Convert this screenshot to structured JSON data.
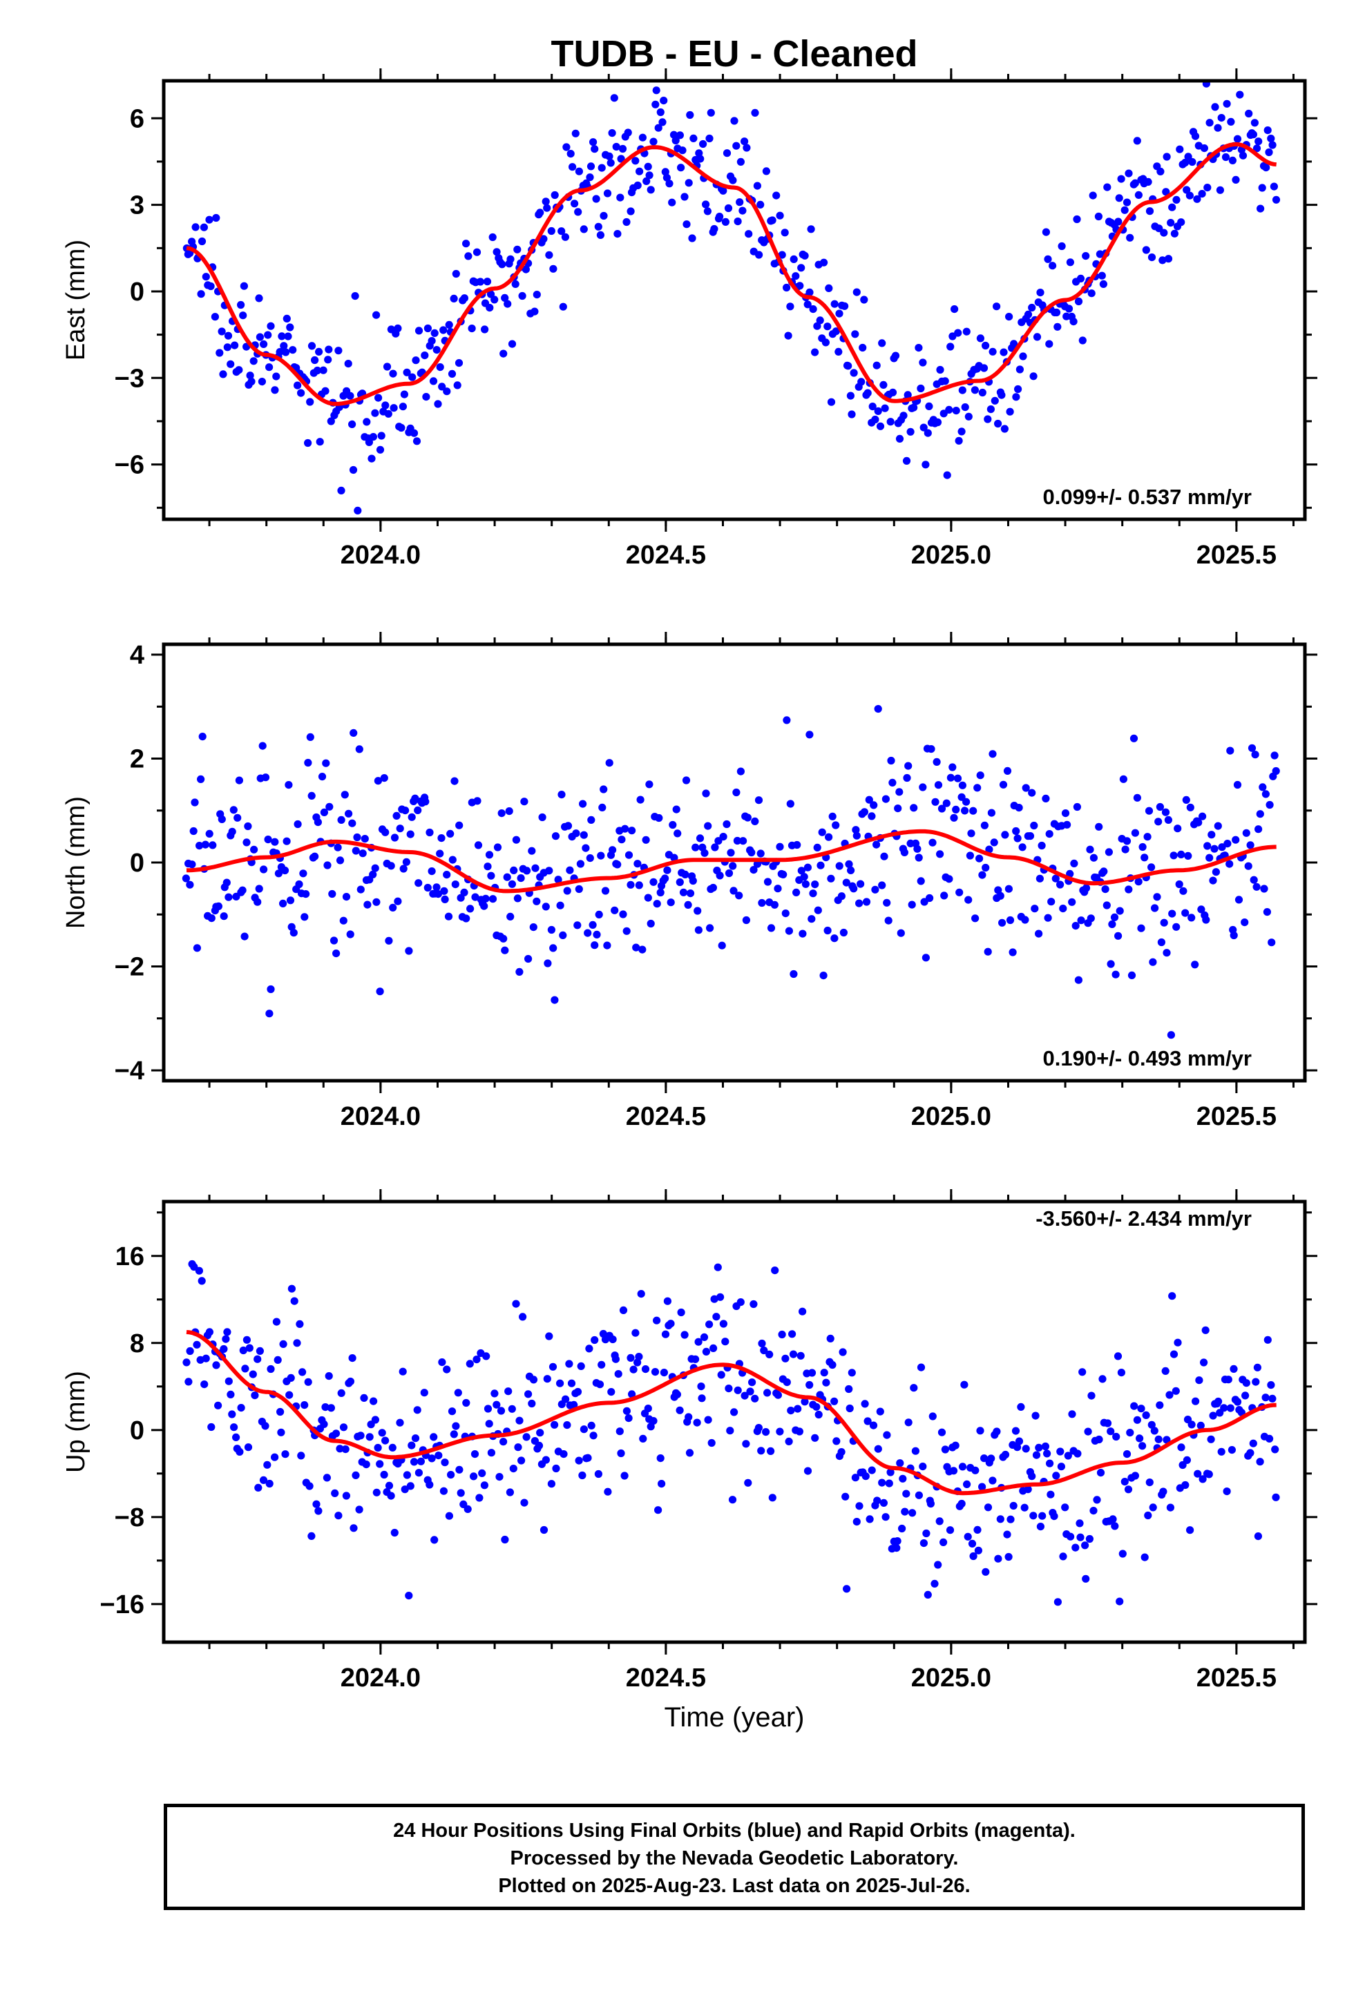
{
  "title": "TUDB  - EU - Cleaned",
  "x_axis_label": "Time (year)",
  "footer": {
    "line1": "24 Hour Positions Using Final Orbits (blue) and Rapid Orbits (magenta).",
    "line2": "Processed by the Nevada Geodetic Laboratory.",
    "line3": "Plotted on 2025-Aug-23. Last data on 2025-Jul-26."
  },
  "colors": {
    "points": "#0000ff",
    "fit": "#ff0000",
    "frame": "#000000"
  },
  "chart_data": [
    {
      "type": "scatter",
      "panel": "east",
      "ylabel": "East (mm)",
      "xlim": [
        2023.62,
        2025.62
      ],
      "ylim": [
        -7.9,
        7.3
      ],
      "xticks": [
        2024.0,
        2024.5,
        2025.0,
        2025.5
      ],
      "xtick_labels": [
        "2024.0",
        "2024.5",
        "2025.0",
        "2025.5"
      ],
      "yticks": [
        -6,
        -3,
        0,
        3,
        6
      ],
      "ytick_labels": [
        "−6",
        "−3",
        "0",
        "3",
        "6"
      ],
      "rate_annotation": "0.099+/- 0.537 mm/yr",
      "data_span": [
        2023.66,
        2025.57
      ],
      "fit_curve": {
        "x": [
          2023.66,
          2023.8,
          2023.92,
          2024.05,
          2024.2,
          2024.35,
          2024.48,
          2024.62,
          2024.75,
          2024.9,
          2025.05,
          2025.2,
          2025.35,
          2025.5,
          2025.57
        ],
        "y": [
          1.5,
          -2.2,
          -3.9,
          -3.2,
          0.1,
          3.5,
          5.0,
          3.6,
          -0.2,
          -3.8,
          -3.1,
          -0.3,
          3.1,
          5.1,
          4.4
        ]
      },
      "noise_sd": 1.1,
      "n_points": 620
    },
    {
      "type": "scatter",
      "panel": "north",
      "ylabel": "North (mm)",
      "xlim": [
        2023.62,
        2025.62
      ],
      "ylim": [
        -4.2,
        4.2
      ],
      "xticks": [
        2024.0,
        2024.5,
        2025.0,
        2025.5
      ],
      "xtick_labels": [
        "2024.0",
        "2024.5",
        "2025.0",
        "2025.5"
      ],
      "yticks": [
        -4,
        -2,
        0,
        2,
        4
      ],
      "ytick_labels": [
        "−4",
        "−2",
        "0",
        "2",
        "4"
      ],
      "rate_annotation": "0.190+/- 0.493 mm/yr",
      "data_span": [
        2023.66,
        2025.57
      ],
      "fit_curve": {
        "x": [
          2023.66,
          2023.8,
          2023.92,
          2024.05,
          2024.22,
          2024.4,
          2024.55,
          2024.7,
          2024.95,
          2025.1,
          2025.25,
          2025.4,
          2025.57
        ],
        "y": [
          -0.15,
          0.1,
          0.4,
          0.2,
          -0.55,
          -0.3,
          0.05,
          0.05,
          0.6,
          0.1,
          -0.4,
          -0.15,
          0.3
        ]
      },
      "noise_sd": 1.0,
      "n_points": 620
    },
    {
      "type": "scatter",
      "panel": "up",
      "ylabel": "Up (mm)",
      "xlim": [
        2023.62,
        2025.62
      ],
      "ylim": [
        -19.5,
        21.0
      ],
      "xticks": [
        2024.0,
        2024.5,
        2025.0,
        2025.5
      ],
      "xtick_labels": [
        "2024.0",
        "2024.5",
        "2025.0",
        "2025.5"
      ],
      "yticks": [
        -16,
        -8,
        0,
        8,
        16
      ],
      "ytick_labels": [
        "−16",
        "−8",
        "0",
        "8",
        "16"
      ],
      "rate_annotation": "-3.560+/- 2.434 mm/yr",
      "data_span": [
        2023.66,
        2025.57
      ],
      "fit_curve": {
        "x": [
          2023.66,
          2023.8,
          2023.92,
          2024.02,
          2024.2,
          2024.4,
          2024.6,
          2024.75,
          2024.9,
          2025.02,
          2025.15,
          2025.3,
          2025.45,
          2025.57
        ],
        "y": [
          9.0,
          3.5,
          -1.0,
          -2.5,
          -0.5,
          2.5,
          6.0,
          3.0,
          -3.5,
          -5.8,
          -5.0,
          -3.0,
          0.0,
          2.3
        ]
      },
      "noise_sd": 4.5,
      "n_points": 620
    }
  ]
}
